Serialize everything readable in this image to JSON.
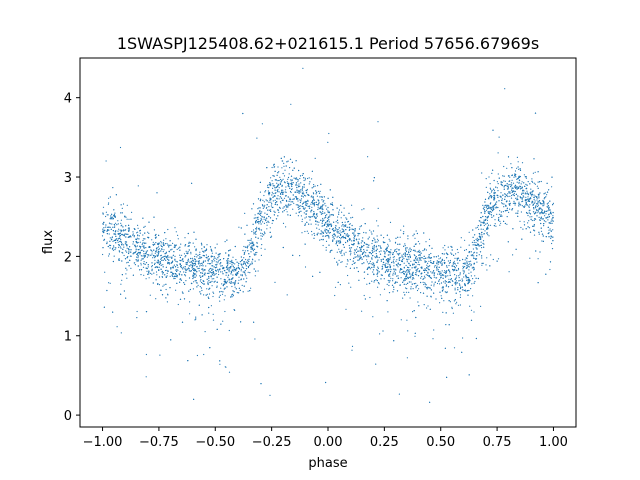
{
  "chart_data": {
    "type": "scatter",
    "title": "1SWASPJ125408.62+021615.1 Period 57656.67969s",
    "xlabel": "phase",
    "ylabel": "flux",
    "xlim": [
      -1.1,
      1.1
    ],
    "ylim": [
      -0.15,
      4.5
    ],
    "xticks": [
      -1.0,
      -0.75,
      -0.5,
      -0.25,
      0.0,
      0.25,
      0.5,
      0.75,
      1.0
    ],
    "xtick_labels": [
      "−1.00",
      "−0.75",
      "−0.50",
      "−0.25",
      "0.00",
      "0.25",
      "0.50",
      "0.75",
      "1.00"
    ],
    "yticks": [
      0,
      1,
      2,
      3,
      4
    ],
    "ytick_labels": [
      "0",
      "1",
      "2",
      "3",
      "4"
    ],
    "grid": false,
    "marker_color": "#1f77b4",
    "series": [
      {
        "profile_phase": [
          0.0,
          0.05,
          0.1,
          0.15,
          0.2,
          0.25,
          0.3,
          0.35,
          0.4,
          0.45,
          0.5,
          0.55,
          0.6,
          0.62,
          0.65,
          0.7,
          0.75,
          0.8,
          0.82,
          0.85,
          0.9,
          0.95,
          1.0
        ],
        "profile_flux": [
          2.45,
          2.3,
          2.18,
          2.1,
          2.03,
          1.98,
          1.94,
          1.9,
          1.87,
          1.84,
          1.82,
          1.8,
          1.78,
          1.8,
          2.0,
          2.5,
          2.75,
          2.85,
          2.88,
          2.8,
          2.7,
          2.58,
          2.45
        ]
      }
    ]
  }
}
